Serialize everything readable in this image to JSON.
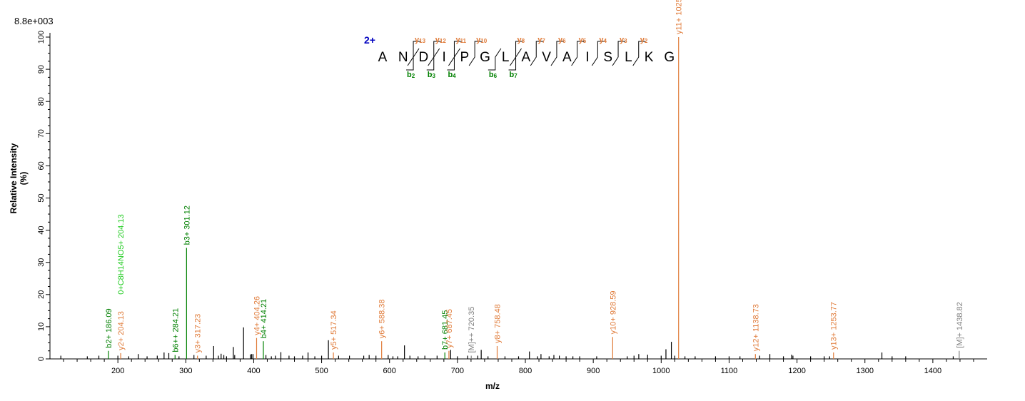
{
  "header": {
    "scale_label": "8.8e+003"
  },
  "peptide": {
    "charge": "2+",
    "sequence": [
      "A",
      "N",
      "D",
      "I",
      "P",
      "G",
      "L",
      "A",
      "V",
      "A",
      "I",
      "S",
      "L",
      "K",
      "G"
    ],
    "b_ions": [
      {
        "after": 2,
        "label": "b2"
      },
      {
        "after": 3,
        "label": "b3"
      },
      {
        "after": 4,
        "label": "b4"
      },
      {
        "after": 6,
        "label": "b6"
      },
      {
        "after": 7,
        "label": "b7"
      }
    ],
    "y_ions": [
      {
        "n": 13,
        "label": "y13"
      },
      {
        "n": 12,
        "label": "y12"
      },
      {
        "n": 11,
        "label": "y11"
      },
      {
        "n": 10,
        "label": "y10"
      },
      {
        "n": 8,
        "label": "y8"
      },
      {
        "n": 7,
        "label": "y7"
      },
      {
        "n": 6,
        "label": "y6"
      },
      {
        "n": 5,
        "label": "y5"
      },
      {
        "n": 4,
        "label": "y4"
      },
      {
        "n": 3,
        "label": "y3"
      },
      {
        "n": 2,
        "label": "y2"
      }
    ]
  },
  "colors": {
    "b_ion": "#008000",
    "y_ion": "#e07b39",
    "precursor": "#808080",
    "other": "#000000",
    "immonium": "#22cc22",
    "charge": "#0000c0"
  },
  "chart_data": {
    "type": "bar",
    "xlabel": "m/z",
    "ylabel": "Relative   Intensity (%)",
    "xlim": [
      100,
      1480
    ],
    "ylim": [
      0,
      100
    ],
    "x_ticks": [
      200,
      300,
      400,
      500,
      600,
      700,
      800,
      900,
      1000,
      1100,
      1200,
      1300,
      1400
    ],
    "y_ticks": [
      0,
      10,
      20,
      30,
      40,
      50,
      60,
      70,
      80,
      90,
      100
    ],
    "annotated_peaks": [
      {
        "mz": 186.09,
        "intensity": 2.5,
        "label": "b2+ 186.09",
        "kind": "b"
      },
      {
        "mz": 204.13,
        "intensity": 1.8,
        "label": "y2+ 204.13",
        "kind": "y"
      },
      {
        "mz": 204.13,
        "intensity": 1.8,
        "label": "0+C8H14NO5+ 204.13",
        "kind": "immonium"
      },
      {
        "mz": 284.21,
        "intensity": 1.2,
        "label": "b6++ 284.21",
        "kind": "b"
      },
      {
        "mz": 301.12,
        "intensity": 34.5,
        "label": "b3+ 301.12",
        "kind": "b"
      },
      {
        "mz": 317.23,
        "intensity": 1.0,
        "label": "y3+ 317.23",
        "kind": "y"
      },
      {
        "mz": 404.26,
        "intensity": 6.5,
        "label": "y4+ 404.26",
        "kind": "y"
      },
      {
        "mz": 414.21,
        "intensity": 5.5,
        "label": "b4+ 414.21",
        "kind": "b"
      },
      {
        "mz": 517.34,
        "intensity": 2.0,
        "label": "y5+ 517.34",
        "kind": "y"
      },
      {
        "mz": 588.38,
        "intensity": 5.5,
        "label": "y6+ 588.38",
        "kind": "y"
      },
      {
        "mz": 681.45,
        "intensity": 2.0,
        "label": "b7+ 681.45",
        "kind": "b"
      },
      {
        "mz": 687.45,
        "intensity": 2.5,
        "label": "y7+ 687.45",
        "kind": "y"
      },
      {
        "mz": 720.35,
        "intensity": 1.0,
        "label": "[M]++ 720.35",
        "kind": "precursor"
      },
      {
        "mz": 758.48,
        "intensity": 4.0,
        "label": "y8+ 758.48",
        "kind": "y"
      },
      {
        "mz": 928.59,
        "intensity": 6.8,
        "label": "y10+ 928.59",
        "kind": "y"
      },
      {
        "mz": 1025.65,
        "intensity": 100,
        "label": "y11+ 1025.65",
        "kind": "y"
      },
      {
        "mz": 1138.73,
        "intensity": 1.5,
        "label": "y12+ 1138.73",
        "kind": "y"
      },
      {
        "mz": 1253.77,
        "intensity": 2.0,
        "label": "y13+ 1253.77",
        "kind": "y"
      },
      {
        "mz": 1438.82,
        "intensity": 2.5,
        "label": "[M]+ 1438.82",
        "kind": "precursor"
      }
    ],
    "unlabeled_peaks": [
      [
        116,
        1.0
      ],
      [
        155,
        0.8
      ],
      [
        172,
        1.0
      ],
      [
        200,
        1.0
      ],
      [
        216,
        0.8
      ],
      [
        230,
        1.5
      ],
      [
        243,
        0.8
      ],
      [
        258,
        1.0
      ],
      [
        268,
        2.0
      ],
      [
        275,
        1.8
      ],
      [
        290,
        0.8
      ],
      [
        312,
        1.2
      ],
      [
        330,
        1.0
      ],
      [
        341,
        4.0
      ],
      [
        348,
        1.0
      ],
      [
        352,
        1.6
      ],
      [
        356,
        1.2
      ],
      [
        360,
        0.8
      ],
      [
        370,
        3.7
      ],
      [
        372,
        1.2
      ],
      [
        385,
        9.8
      ],
      [
        395,
        1.4
      ],
      [
        397,
        1.5
      ],
      [
        399,
        1.5
      ],
      [
        418,
        1.2
      ],
      [
        426,
        0.8
      ],
      [
        432,
        1.0
      ],
      [
        440,
        2.1
      ],
      [
        452,
        1.0
      ],
      [
        460,
        0.8
      ],
      [
        472,
        1.0
      ],
      [
        480,
        2.0
      ],
      [
        490,
        0.8
      ],
      [
        500,
        1.0
      ],
      [
        510,
        5.8
      ],
      [
        525,
        1.0
      ],
      [
        541,
        1.0
      ],
      [
        562,
        1.0
      ],
      [
        570,
        1.2
      ],
      [
        580,
        1.0
      ],
      [
        598,
        1.2
      ],
      [
        605,
        0.8
      ],
      [
        612,
        0.8
      ],
      [
        622,
        4.2
      ],
      [
        630,
        1.0
      ],
      [
        642,
        0.8
      ],
      [
        652,
        1.0
      ],
      [
        670,
        1.0
      ],
      [
        690,
        2.8
      ],
      [
        700,
        0.8
      ],
      [
        715,
        1.0
      ],
      [
        730,
        1.0
      ],
      [
        735,
        2.8
      ],
      [
        745,
        0.8
      ],
      [
        770,
        0.8
      ],
      [
        790,
        0.8
      ],
      [
        806,
        2.3
      ],
      [
        818,
        0.8
      ],
      [
        823,
        1.5
      ],
      [
        835,
        0.8
      ],
      [
        842,
        1.2
      ],
      [
        850,
        1.0
      ],
      [
        860,
        0.8
      ],
      [
        870,
        0.8
      ],
      [
        880,
        0.8
      ],
      [
        905,
        0.8
      ],
      [
        950,
        0.8
      ],
      [
        960,
        1.0
      ],
      [
        967,
        1.5
      ],
      [
        980,
        1.3
      ],
      [
        1000,
        1.0
      ],
      [
        1007,
        3.0
      ],
      [
        1015,
        5.3
      ],
      [
        1020,
        1.0
      ],
      [
        1035,
        0.8
      ],
      [
        1050,
        0.8
      ],
      [
        1080,
        0.8
      ],
      [
        1100,
        0.8
      ],
      [
        1116,
        0.8
      ],
      [
        1145,
        1.0
      ],
      [
        1160,
        1.5
      ],
      [
        1180,
        0.8
      ],
      [
        1192,
        1.3
      ],
      [
        1194,
        1.0
      ],
      [
        1220,
        0.8
      ],
      [
        1240,
        0.8
      ],
      [
        1248,
        0.8
      ],
      [
        1325,
        2.0
      ],
      [
        1340,
        0.8
      ],
      [
        1360,
        0.8
      ],
      [
        1430,
        0.8
      ]
    ]
  }
}
